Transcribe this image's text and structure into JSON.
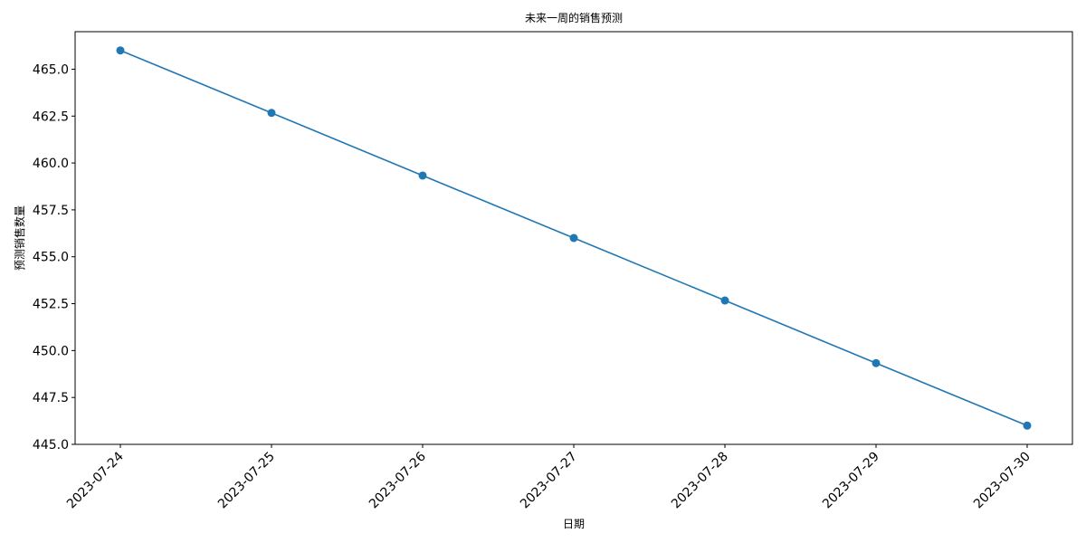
{
  "chart_data": {
    "type": "line",
    "title": "未来一周的销售预测",
    "xlabel": "日期",
    "ylabel": "预测销售数量",
    "categories": [
      "2023-07-24",
      "2023-07-25",
      "2023-07-26",
      "2023-07-27",
      "2023-07-28",
      "2023-07-29",
      "2023-07-30"
    ],
    "series": [
      {
        "values": [
          466.0,
          462.67,
          459.33,
          456.0,
          452.67,
          449.33,
          446.0
        ],
        "color": "#1f77b4",
        "marker": "circle"
      }
    ],
    "ylim": [
      445.0,
      467.0
    ],
    "yticks": [
      "445.0",
      "447.5",
      "450.0",
      "452.5",
      "455.0",
      "457.5",
      "460.0",
      "462.5",
      "465.0"
    ],
    "grid": false,
    "legend": false
  }
}
